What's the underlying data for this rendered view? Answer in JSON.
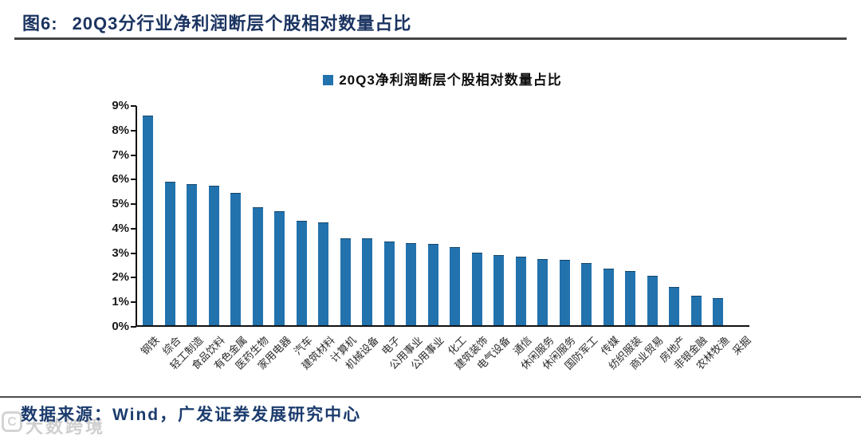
{
  "header": {
    "figure_label": "图6:",
    "title": "20Q3分行业净利润断层个股相对数量占比"
  },
  "chart_data": {
    "type": "bar",
    "title": "20Q3净利润断层个股相对数量占比",
    "legend": "20Q3净利润断层个股相对数量占比",
    "legend_position": "top-center",
    "grid": false,
    "ylim": [
      0,
      9
    ],
    "ytick_step": 1,
    "ytick_labels": [
      "0%",
      "1%",
      "2%",
      "3%",
      "4%",
      "5%",
      "6%",
      "7%",
      "8%",
      "9%"
    ],
    "bar_color": "#2272ae",
    "categories": [
      "钢铁",
      "综合",
      "轻工制造",
      "食品饮料",
      "有色金属",
      "医药生物",
      "家用电器",
      "汽车",
      "建筑材料",
      "计算机",
      "机械设备",
      "电子",
      "公用事业",
      "公用事业",
      "化工",
      "建筑装饰",
      "电气设备",
      "通信",
      "休闲服务",
      "休闲服务",
      "国防军工",
      "传媒",
      "纺织服装",
      "商业贸易",
      "房地产",
      "非银金融",
      "农林牧渔",
      "采掘"
    ],
    "values": [
      8.55,
      5.85,
      5.75,
      5.7,
      5.4,
      4.8,
      4.65,
      4.25,
      4.2,
      3.55,
      3.55,
      3.4,
      3.35,
      3.3,
      3.2,
      2.95,
      2.85,
      2.8,
      2.7,
      2.65,
      2.55,
      2.3,
      2.2,
      2.0,
      1.55,
      1.2,
      1.1,
      0
    ]
  },
  "footer": {
    "source": "数据来源：Wind，广发证券发展研究中心",
    "watermark_logo": "C",
    "watermark": "大数跨境"
  },
  "colors": {
    "title_navy": "#1b3461",
    "bar_blue": "#2272ae",
    "source_navy": "#1c3c6e"
  }
}
